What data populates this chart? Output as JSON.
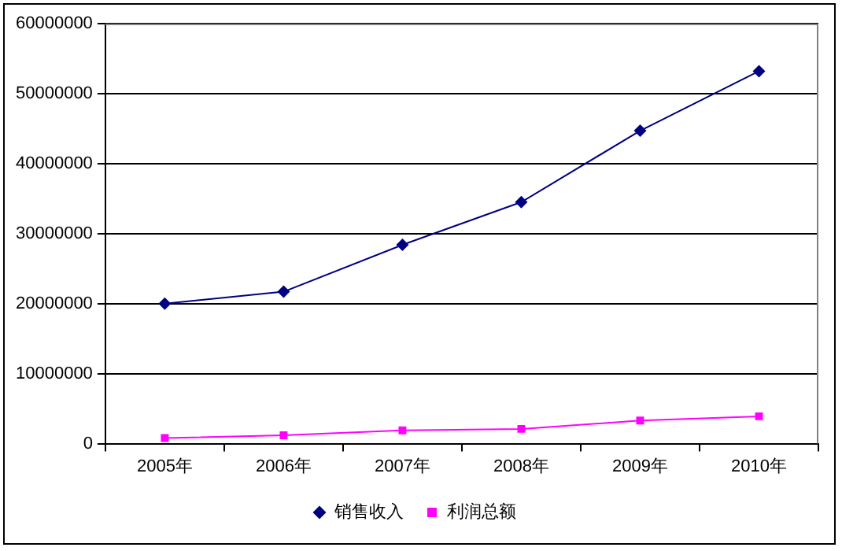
{
  "chart_data": {
    "type": "line",
    "categories": [
      "2005年",
      "2006年",
      "2007年",
      "2008年",
      "2009年",
      "2010年"
    ],
    "series": [
      {
        "name": "销售收入",
        "color": "#000080",
        "marker": "diamond",
        "values": [
          20000000,
          21700000,
          28400000,
          34500000,
          44700000,
          53200000
        ]
      },
      {
        "name": "利润总额",
        "color": "#ff00ff",
        "marker": "square",
        "values": [
          800000,
          1200000,
          1900000,
          2100000,
          3300000,
          3900000
        ]
      }
    ],
    "ylim": [
      0,
      60000000
    ],
    "yticks": [
      0,
      10000000,
      20000000,
      30000000,
      40000000,
      50000000,
      60000000
    ],
    "grid": "y",
    "legend": "bottom"
  }
}
